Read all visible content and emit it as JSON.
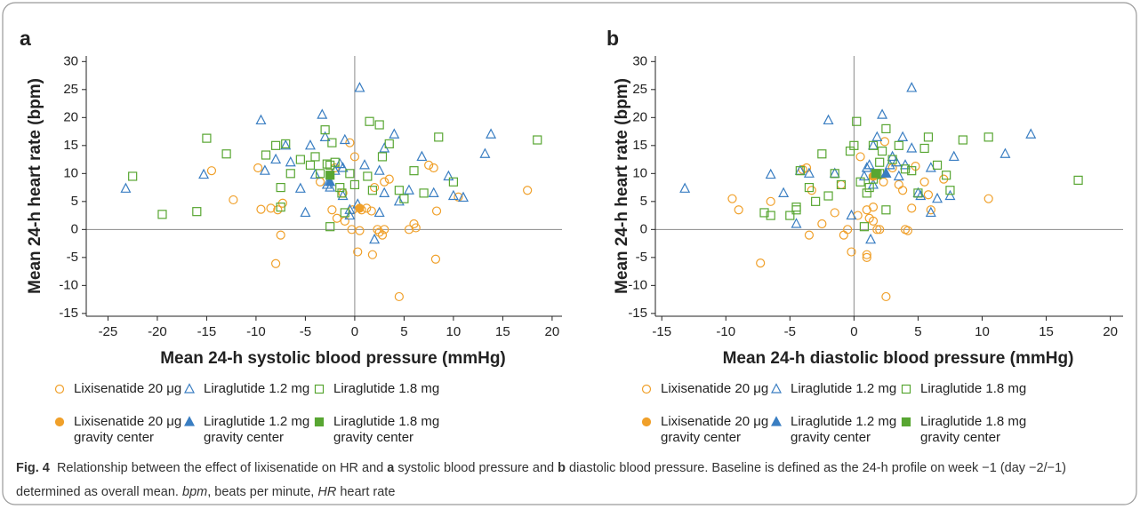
{
  "chart_data": [
    {
      "type": "scatter",
      "label": "a",
      "xlabel": "Mean 24-h systolic blood pressure (mmHg)",
      "ylabel": "Mean 24-h heart rate (bpm)",
      "xlim": [
        -27.2,
        21
      ],
      "ylim": [
        -15.5,
        31
      ],
      "xticks": [
        -25,
        -20,
        -15,
        -10,
        -5,
        0,
        5,
        10,
        15,
        20
      ],
      "yticks": [
        -15,
        -10,
        -5,
        0,
        5,
        10,
        15,
        20,
        25,
        30
      ],
      "series": [
        {
          "name": "Lixisenatide 20 μg",
          "color": "#f0a02a",
          "marker": "circle",
          "filled": false,
          "x": [
            -14.5,
            -12.3,
            -9.8,
            -9.5,
            -8.5,
            -8,
            -7.8,
            -7.5,
            -7.3,
            -3.5,
            -2.3,
            -2,
            -1.8,
            -1.2,
            -1,
            -0.5,
            -0.3,
            0,
            0.3,
            0.5,
            0.7,
            1.2,
            1.7,
            1.8,
            2,
            2.3,
            2.5,
            2.8,
            3,
            3,
            3.5,
            4.5,
            5.5,
            6,
            6.2,
            7.5,
            8,
            8.3,
            8.2,
            10.5,
            17.5,
            -0.2
          ],
          "values": [
            10.5,
            5.3,
            11,
            3.6,
            3.8,
            -6.1,
            3.5,
            -1,
            4.7,
            8.5,
            3.5,
            11,
            2,
            6.5,
            1.5,
            15.5,
            0,
            13,
            -4,
            -0.2,
            3.5,
            3.8,
            3.3,
            -4.5,
            7.5,
            0,
            -0.5,
            -1,
            0,
            8.5,
            9,
            -12,
            0,
            1,
            0.3,
            11.5,
            11,
            3.3,
            -5.3,
            5.8,
            7,
            3.5
          ]
        },
        {
          "name": "Liraglutide 1.2 mg",
          "color": "#3a7ec2",
          "marker": "triangle",
          "filled": false,
          "x": [
            -23.2,
            -15.3,
            -9.5,
            -9.1,
            -8,
            -7,
            -6.5,
            -5.5,
            -5,
            -4.5,
            -4,
            -3.3,
            -3,
            -2.8,
            -2.5,
            -2,
            -1.5,
            -1.2,
            -1,
            -0.5,
            -0.5,
            0.5,
            1,
            2.5,
            2.5,
            2,
            3,
            3,
            4,
            4.5,
            5.5,
            6.8,
            8,
            9.5,
            10,
            11,
            13.2,
            13.8,
            -1.2,
            0.3
          ],
          "values": [
            7.3,
            9.8,
            19.5,
            10.5,
            12.5,
            15,
            12,
            7.3,
            3,
            15,
            9.8,
            20.5,
            16.5,
            8,
            7.5,
            10.5,
            11.7,
            11,
            16,
            2.5,
            3.5,
            25.3,
            11.5,
            10.5,
            3,
            -1.8,
            6.5,
            14.5,
            17,
            5,
            7,
            13,
            6.5,
            9.5,
            6,
            5.7,
            13.5,
            17,
            6,
            4.5
          ]
        },
        {
          "name": "Liraglutide 1.8 mg",
          "color": "#58a632",
          "marker": "square",
          "filled": false,
          "x": [
            -22.5,
            -19.5,
            -16,
            -15,
            -13,
            -9,
            -8,
            -7.5,
            -7.5,
            -7,
            -6.5,
            -5.5,
            -4.5,
            -4,
            -3.5,
            -3,
            -2.5,
            -2.5,
            -2.3,
            -2,
            -1.5,
            -1.3,
            -1,
            -0.5,
            0,
            1.5,
            1.8,
            2.5,
            2.8,
            3.5,
            4.5,
            5,
            6,
            7,
            8.5,
            10,
            18.5,
            -2.8,
            1.3
          ],
          "values": [
            9.5,
            2.7,
            3.2,
            16.3,
            13.5,
            13.3,
            15,
            7.5,
            4,
            15.3,
            10,
            12.5,
            11.5,
            13,
            10,
            17.8,
            11.5,
            0.5,
            15.5,
            12,
            7.5,
            6.5,
            3,
            10,
            8,
            19.3,
            7,
            18.7,
            13,
            15.3,
            7,
            5.5,
            10.5,
            6.5,
            16.5,
            8.5,
            16,
            11.7,
            9.5
          ]
        },
        {
          "name": "Lixisenatide 20 μg gravity center",
          "color": "#f0a02a",
          "marker": "circle",
          "filled": true,
          "x": [
            0.5
          ],
          "values": [
            3.8
          ]
        },
        {
          "name": "Liraglutide 1.2 mg gravity center",
          "color": "#3a7ec2",
          "marker": "triangle",
          "filled": true,
          "x": [
            -2.5
          ],
          "values": [
            8.5
          ]
        },
        {
          "name": "Liraglutide 1.8 mg gravity center",
          "color": "#58a632",
          "marker": "square",
          "filled": true,
          "x": [
            -2.5
          ],
          "values": [
            9.7
          ]
        }
      ]
    },
    {
      "type": "scatter",
      "label": "b",
      "xlabel": "Mean 24-h diastolic blood pressure (mmHg)",
      "ylabel": "Mean 24-h heart rate (bpm)",
      "xlim": [
        -15.5,
        21
      ],
      "ylim": [
        -15.5,
        31
      ],
      "xticks": [
        -15,
        -10,
        -5,
        0,
        5,
        10,
        15,
        20
      ],
      "yticks": [
        -15,
        -10,
        -5,
        0,
        5,
        10,
        15,
        20,
        25,
        30
      ],
      "series": [
        {
          "name": "Lixisenatide 20 μg",
          "color": "#f0a02a",
          "marker": "circle",
          "filled": false,
          "x": [
            -9.5,
            -9,
            -7.3,
            -6.5,
            -4,
            -3.7,
            -3.5,
            -3.3,
            -2.5,
            -1.5,
            -1,
            -0.8,
            -0.5,
            -0.2,
            0.3,
            0.5,
            1,
            1,
            1.2,
            1.5,
            1.5,
            1.8,
            2,
            2.3,
            2.4,
            2.5,
            3,
            3.5,
            3.8,
            4,
            4.2,
            4.5,
            5.5,
            5.8,
            6,
            7,
            10.5,
            1,
            4.8
          ],
          "values": [
            5.5,
            3.5,
            -6,
            5,
            10.7,
            11,
            -1,
            7,
            1,
            3,
            8,
            -1,
            0,
            -4,
            2.5,
            13,
            -5,
            3.5,
            2,
            1.5,
            4,
            0,
            0,
            8.5,
            15.7,
            -12,
            11,
            8,
            7,
            0,
            -0.2,
            3.8,
            8.5,
            6.2,
            3.5,
            9,
            5.5,
            -4.5,
            11.3
          ]
        },
        {
          "name": "Liraglutide 1.2 mg",
          "color": "#3a7ec2",
          "marker": "triangle",
          "filled": false,
          "x": [
            -13.2,
            -6.5,
            -5.5,
            -4.2,
            -3.5,
            -4.5,
            -2,
            -1.5,
            -0.2,
            1,
            1.5,
            1.3,
            1.5,
            1.8,
            2.2,
            2.5,
            3,
            3.3,
            3.5,
            3.8,
            4,
            4.5,
            4.5,
            5,
            5.2,
            6,
            6,
            6.5,
            7.5,
            7.8,
            11.8,
            13.8,
            1.2,
            2.8,
            0.8
          ],
          "values": [
            7.3,
            9.8,
            6.5,
            10.5,
            10,
            1,
            19.5,
            10,
            2.5,
            11,
            8,
            -1.8,
            15,
            16.5,
            20.5,
            10,
            13,
            12,
            9.5,
            16.5,
            11.5,
            25.3,
            14.5,
            6.5,
            6,
            3,
            11,
            5.5,
            6,
            13,
            13.5,
            17,
            11.5,
            11.5,
            9.5
          ]
        },
        {
          "name": "Liraglutide 1.8 mg",
          "color": "#58a632",
          "marker": "square",
          "filled": false,
          "x": [
            -7,
            -6.5,
            -5,
            -4.5,
            -4.5,
            -4.2,
            -3.5,
            -3,
            -2.5,
            -2,
            -1.5,
            -1,
            -0.3,
            0,
            0.2,
            0.5,
            1,
            1.2,
            1.5,
            1.5,
            2,
            2,
            2.2,
            2.5,
            2.5,
            3,
            3.5,
            4,
            4.5,
            5,
            5.5,
            5.8,
            6.5,
            7.2,
            7.5,
            8.5,
            10.5,
            17.5,
            1.8,
            0.8
          ],
          "values": [
            3,
            2.5,
            2.5,
            4,
            3.5,
            10.5,
            7.5,
            5,
            13.5,
            6,
            10,
            8,
            14,
            15,
            19.3,
            8.5,
            6.5,
            7.5,
            9,
            15,
            10,
            12,
            14,
            18,
            3.5,
            12.5,
            15,
            10.8,
            10.5,
            6.5,
            14.5,
            16.5,
            11.5,
            9.7,
            7,
            16,
            16.5,
            8.8,
            9.8,
            0.5
          ]
        },
        {
          "name": "Lixisenatide 20 μg gravity center",
          "color": "#f0a02a",
          "marker": "circle",
          "filled": true,
          "x": [
            1.5
          ],
          "values": [
            9.5
          ]
        },
        {
          "name": "Liraglutide 1.2 mg gravity center",
          "color": "#3a7ec2",
          "marker": "triangle",
          "filled": true,
          "x": [
            2.5
          ],
          "values": [
            10
          ]
        },
        {
          "name": "Liraglutide 1.8 mg gravity center",
          "color": "#58a632",
          "marker": "square",
          "filled": true,
          "x": [
            1.7
          ],
          "values": [
            10
          ]
        }
      ]
    }
  ],
  "caption": {
    "label": "Fig. 4",
    "parts": [
      {
        "text": "Relationship between the effect of lixisenatide on HR and "
      },
      {
        "text": "a",
        "bold": true
      },
      {
        "text": " systolic blood pressure and "
      },
      {
        "text": "b",
        "bold": true
      },
      {
        "text": " diastolic blood pressure. Baseline is defined as the 24-h profile on week −1 (day −2/−1) determined as overall mean. "
      },
      {
        "text": "bpm",
        "italic": true
      },
      {
        "text": ", beats per minute, "
      },
      {
        "text": "HR",
        "italic": true
      },
      {
        "text": " heart rate"
      }
    ]
  }
}
